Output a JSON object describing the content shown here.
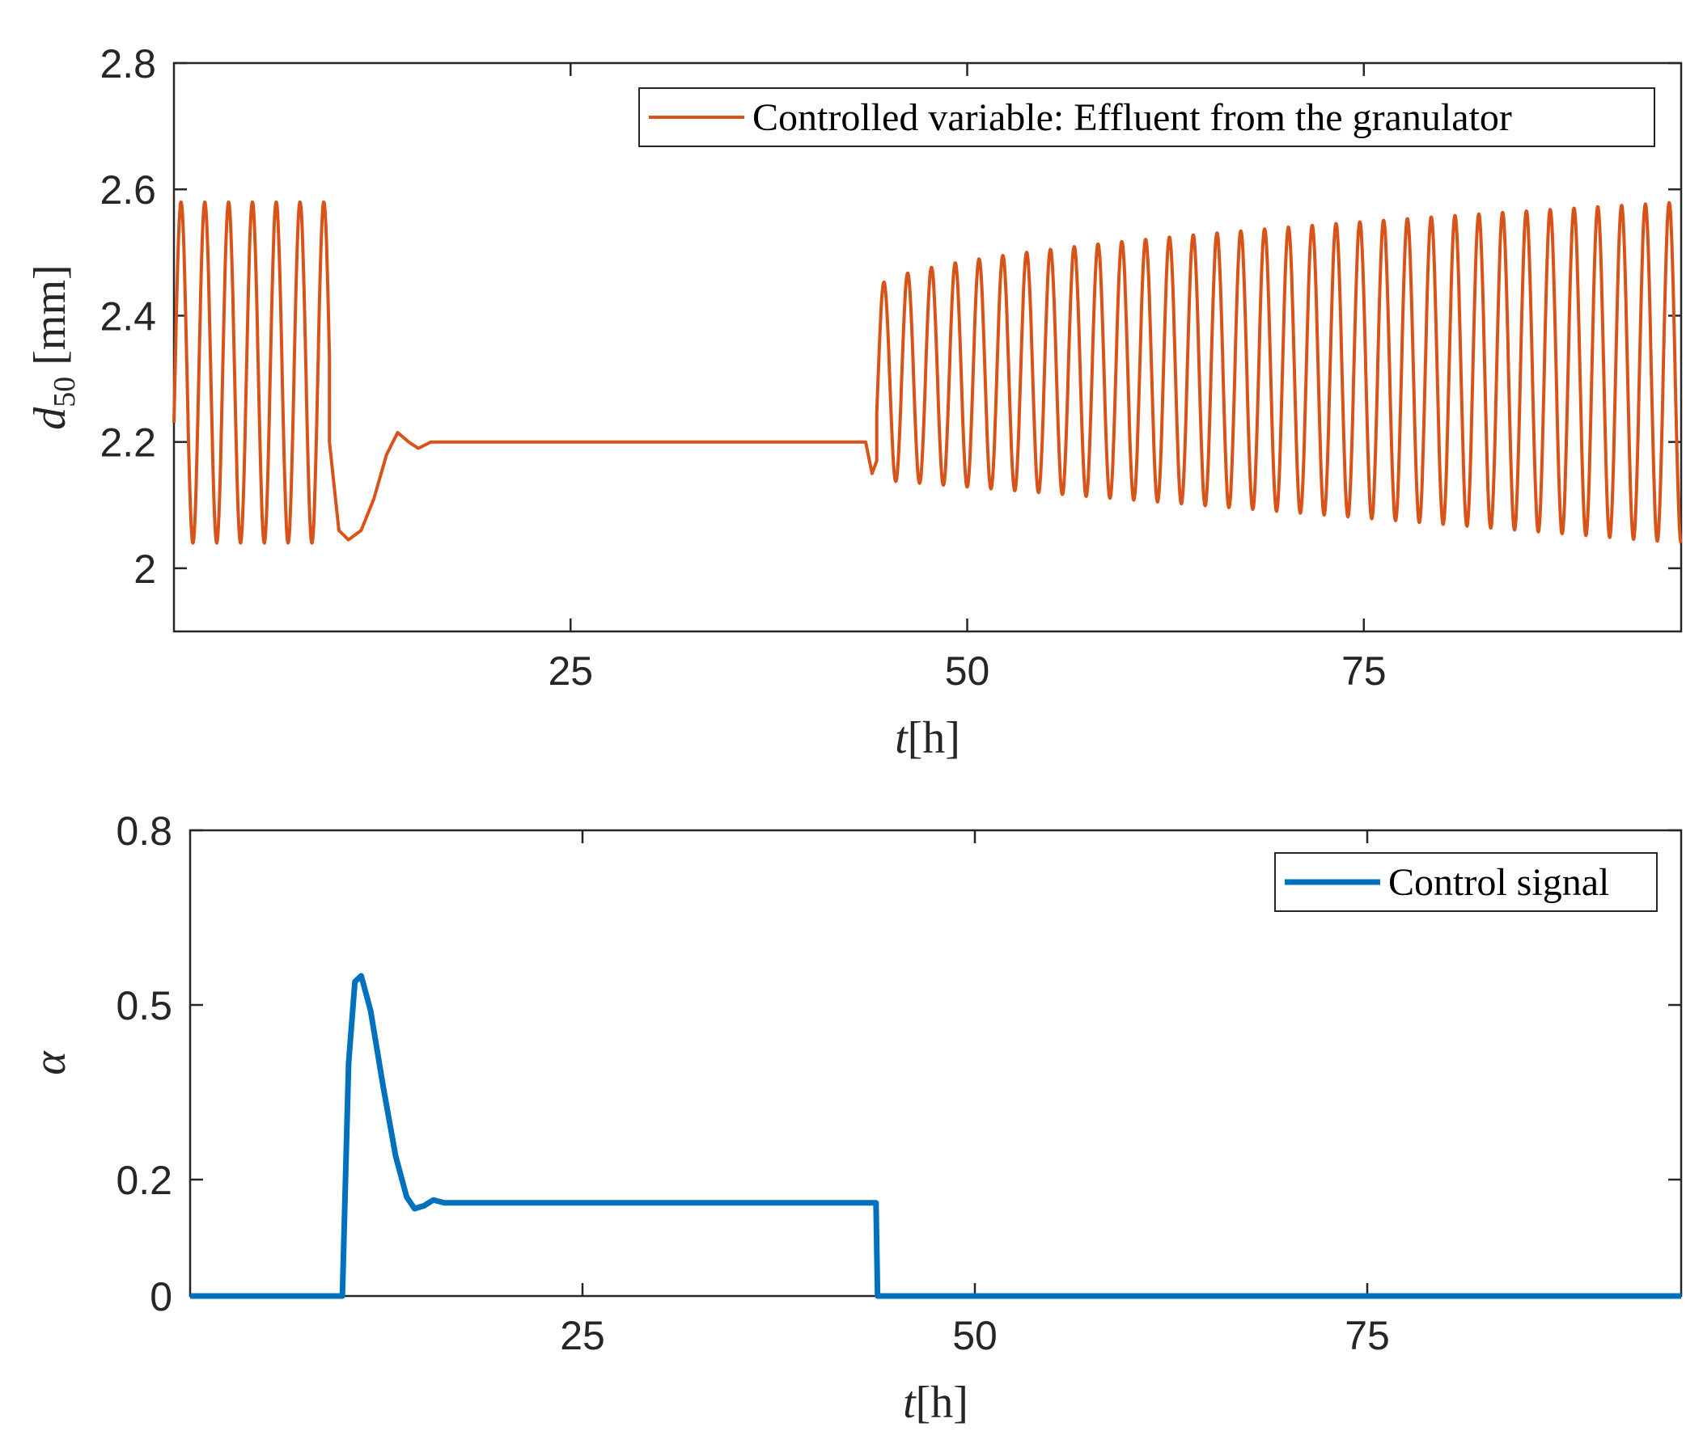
{
  "colors": {
    "series_top": "#D95319",
    "series_bottom": "#0072BD",
    "axis": "#262626"
  },
  "chart_data": [
    {
      "type": "line",
      "title": "",
      "xlabel": {
        "var": "t",
        "unit": "[h]"
      },
      "ylabel": {
        "var": "d",
        "sub": "50",
        "unit": "[mm]"
      },
      "xlim": [
        0,
        95
      ],
      "ylim": [
        1.9,
        2.8
      ],
      "xticks": [
        25,
        50,
        75
      ],
      "xtick_labels": [
        "25",
        "50",
        "75"
      ],
      "yticks": [
        2.0,
        2.2,
        2.4,
        2.6,
        2.8
      ],
      "ytick_labels": [
        "2",
        "2.2",
        "2.4",
        "2.6",
        "2.8"
      ],
      "grid": false,
      "legend": {
        "location": "top-right",
        "entries": [
          "Controlled variable: Effluent from the granulator"
        ]
      },
      "series": [
        {
          "name": "Controlled variable: Effluent from the granulator",
          "segments": [
            {
              "kind": "oscillation",
              "t_start": 0,
              "t_end": 9.8,
              "period": 1.5,
              "min": 2.04,
              "max": 2.58
            },
            {
              "kind": "transient",
              "points": [
                [
                  9.8,
                  2.2
                ],
                [
                  10.4,
                  2.06
                ],
                [
                  11.0,
                  2.045
                ],
                [
                  11.8,
                  2.06
                ],
                [
                  12.6,
                  2.11
                ],
                [
                  13.4,
                  2.18
                ],
                [
                  14.1,
                  2.215
                ],
                [
                  14.8,
                  2.2
                ],
                [
                  15.4,
                  2.19
                ],
                [
                  16.2,
                  2.2
                ],
                [
                  17.0,
                  2.2
                ]
              ]
            },
            {
              "kind": "constant",
              "t_start": 17,
              "t_end": 43.6,
              "value": 2.2
            },
            {
              "kind": "transient",
              "points": [
                [
                  43.6,
                  2.2
                ],
                [
                  44.0,
                  2.15
                ],
                [
                  44.3,
                  2.17
                ]
              ]
            },
            {
              "kind": "oscillation",
              "t_start": 44.3,
              "t_end": 95,
              "period": 1.5,
              "min_start": 2.14,
              "min_end": 2.04,
              "max_start": 2.44,
              "max_end": 2.58
            }
          ]
        }
      ]
    },
    {
      "type": "line",
      "title": "",
      "xlabel": {
        "var": "t",
        "unit": "[h]"
      },
      "ylabel": {
        "var": "α"
      },
      "xlim": [
        0,
        95
      ],
      "ylim": [
        0,
        0.8
      ],
      "xticks": [
        25,
        50,
        75
      ],
      "xtick_labels": [
        "25",
        "50",
        "75"
      ],
      "yticks": [
        0,
        0.2,
        0.5,
        0.8
      ],
      "ytick_labels": [
        "0",
        "0.2",
        "0.5",
        "0.8"
      ],
      "grid": false,
      "legend": {
        "location": "top-right",
        "entries": [
          "Control signal"
        ]
      },
      "series": [
        {
          "name": "Control signal",
          "points": [
            [
              0,
              0
            ],
            [
              9.5,
              0
            ],
            [
              9.7,
              0
            ],
            [
              10.1,
              0.4
            ],
            [
              10.5,
              0.54
            ],
            [
              10.9,
              0.55
            ],
            [
              11.5,
              0.49
            ],
            [
              12.3,
              0.36
            ],
            [
              13.1,
              0.24
            ],
            [
              13.8,
              0.17
            ],
            [
              14.3,
              0.15
            ],
            [
              14.9,
              0.155
            ],
            [
              15.5,
              0.165
            ],
            [
              16.2,
              0.16
            ],
            [
              17,
              0.16
            ],
            [
              18,
              0.16
            ],
            [
              43.7,
              0.16
            ],
            [
              43.8,
              0
            ],
            [
              95,
              0
            ]
          ]
        }
      ]
    }
  ]
}
